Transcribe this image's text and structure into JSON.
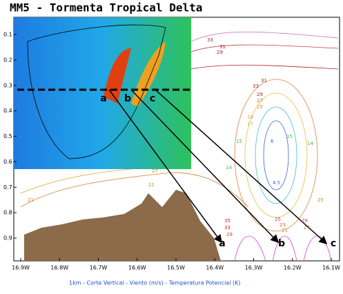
{
  "title": "MM5 - Tormenta Tropical Delta",
  "caption": "1km - Corte Vertical - Viento (m/s) - Temperatura Potencial (K)",
  "y_axis": {
    "ticks": [
      0.1,
      0.2,
      0.3,
      0.4,
      0.5,
      0.6,
      0.7,
      0.8,
      0.9
    ]
  },
  "x_axis": {
    "ticks": [
      "16.9W",
      "16.8W",
      "16.7W",
      "16.6W",
      "16.5W",
      "16.4W",
      "16.3W",
      "16.2W",
      "16.1W"
    ]
  },
  "map_markers": [
    "a",
    "b",
    "c"
  ],
  "section_markers": [
    "a",
    "b",
    "c"
  ],
  "contour_labels": [
    "33",
    "31",
    "29",
    "33",
    "31",
    "29",
    "27",
    "25",
    "21",
    "27",
    "21",
    "19",
    "17",
    "15",
    "14",
    "15",
    "14",
    "4.5",
    "6",
    "35",
    "33",
    "29",
    "25",
    "23",
    "21",
    "29",
    "27",
    "25"
  ]
}
